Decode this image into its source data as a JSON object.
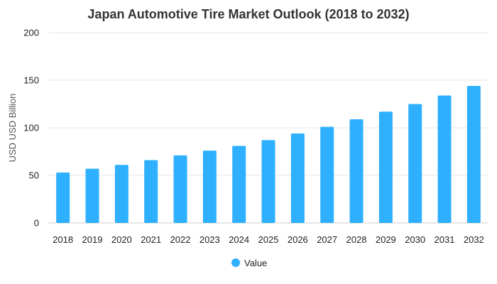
{
  "chart_data": {
    "type": "bar",
    "title": "Japan Automotive Tire Market Outlook (2018 to 2032)",
    "xlabel": "",
    "ylabel": "USD USD Billion",
    "ylim": [
      0,
      200
    ],
    "yticks": [
      0,
      50,
      100,
      150,
      200
    ],
    "grid": true,
    "legend_position": "bottom",
    "categories": [
      "2018",
      "2019",
      "2020",
      "2021",
      "2022",
      "2023",
      "2024",
      "2025",
      "2026",
      "2027",
      "2028",
      "2029",
      "2030",
      "2031",
      "2032"
    ],
    "series": [
      {
        "name": "Value",
        "color": "#2EB0FF",
        "values": [
          53,
          57,
          61,
          66,
          71,
          76,
          81,
          87,
          94,
          101,
          109,
          117,
          125,
          134,
          144
        ]
      }
    ]
  }
}
